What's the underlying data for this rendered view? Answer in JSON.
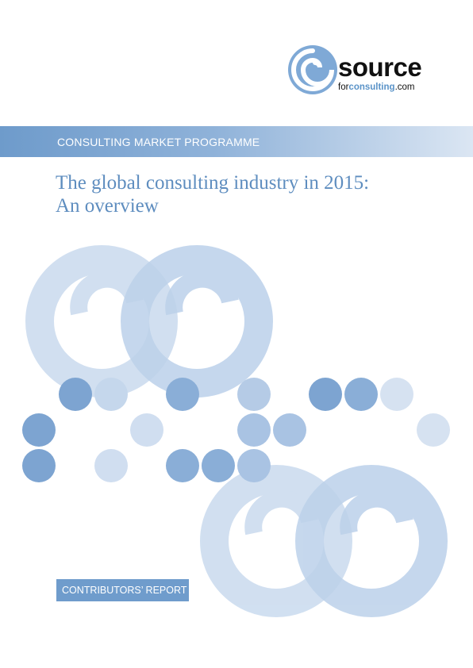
{
  "logo": {
    "word": "source",
    "sub_prefix": "for",
    "sub_bold": "consulting",
    "sub_suffix": ".com",
    "colors": {
      "ring": "#7fa9d6",
      "accent": "#5a93c8"
    }
  },
  "banner": {
    "label": "CONSULTING MARKET PROGRAMME"
  },
  "title": {
    "line1": "The global consulting industry in 2015:",
    "line2": "An overview"
  },
  "report_tag": {
    "label": "CONTRIBUTORS’ REPORT"
  },
  "colors": {
    "dark_dot": "#7da4d1",
    "mid_dot": "#a9c3e3",
    "light_dot": "#d6e2f1",
    "swirl": "#c9daee"
  }
}
